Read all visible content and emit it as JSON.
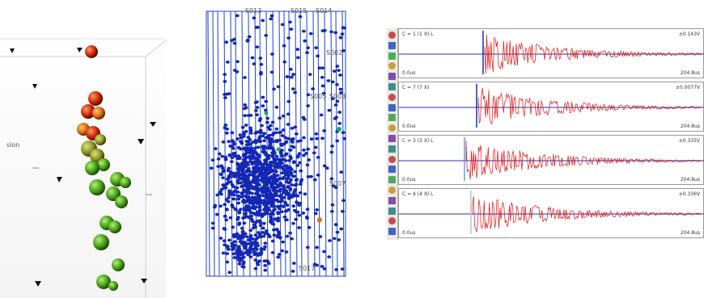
{
  "panels": {
    "spheres": {
      "side_label": "sion"
    },
    "cloud": {
      "station_labels": [
        "S013",
        "S015",
        "S014",
        "S002",
        "S005",
        "S003",
        "S007",
        "S017"
      ]
    },
    "waveforms": {
      "toolbar_icons": [
        "dot-icon",
        "zoom-icon",
        "cross-icon",
        "gear-icon",
        "hand-icon",
        "marker-icon",
        "brush-icon",
        "flag-icon",
        "zoom-in-icon",
        "tool-icon",
        "color-icon",
        "save-icon",
        "filter-icon",
        "grid-icon",
        "cursor-icon",
        "line-icon",
        "cut-icon",
        "plus-icon",
        "minus-icon",
        "fit-icon"
      ],
      "traces": [
        {
          "left_label": "C = 1 (1 X) L",
          "right_label": "±0.143V",
          "start": "0.0us",
          "end": "204.8us",
          "pick": 0.28,
          "pick_color": "#1030c0"
        },
        {
          "left_label": "C = 7 (7 X)",
          "right_label": "±0.0077V",
          "start": "0.0us",
          "end": "204.8us",
          "pick": 0.26,
          "pick_color": "#1030c0"
        },
        {
          "left_label": "C = 3 (3 X) L",
          "right_label": "±0.335V",
          "start": "0.0us",
          "end": "204.8us",
          "pick": 0.22,
          "pick_color": "#5aa0e0"
        },
        {
          "left_label": "C = 4 (4 X) L",
          "right_label": "±0.336V",
          "start": "0.0us",
          "end": "204.8us",
          "pick": 0.24,
          "pick_color": "#a9c8ea"
        }
      ]
    }
  },
  "colors": {
    "dot_blue": "#1428b4",
    "rod_blue": "#2040d0",
    "trace_red": "#e01010",
    "baseline_blue": "#2030b0",
    "sphere_green": "#5ab828",
    "sphere_red": "#d82810",
    "sphere_olive": "#8a9a20"
  }
}
